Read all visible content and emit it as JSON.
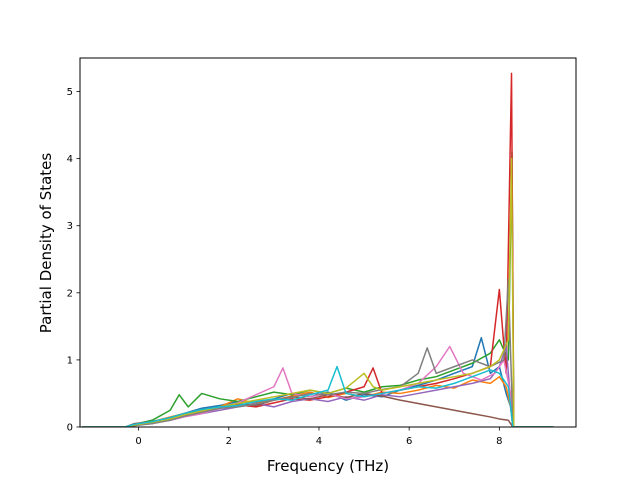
{
  "chart_data": {
    "type": "line",
    "title": "",
    "xlabel": "Frequency (THz)",
    "ylabel": "Partial Density of States",
    "xlim": [
      -1.3,
      9.7
    ],
    "ylim": [
      0,
      5.5
    ],
    "xticks": [
      0,
      2,
      4,
      6,
      8
    ],
    "yticks": [
      0,
      1,
      2,
      3,
      4,
      5
    ],
    "grid": false,
    "legend": "none",
    "series": [
      {
        "color": "#1f77b4",
        "points": [
          [
            -1.25,
            0
          ],
          [
            -0.3,
            0
          ],
          [
            -0.1,
            0.03
          ],
          [
            0.3,
            0.06
          ],
          [
            0.7,
            0.12
          ],
          [
            1.0,
            0.2
          ],
          [
            1.4,
            0.28
          ],
          [
            1.8,
            0.32
          ],
          [
            2.2,
            0.38
          ],
          [
            2.6,
            0.36
          ],
          [
            3.0,
            0.42
          ],
          [
            3.4,
            0.5
          ],
          [
            3.8,
            0.45
          ],
          [
            4.2,
            0.52
          ],
          [
            4.6,
            0.4
          ],
          [
            5.0,
            0.48
          ],
          [
            5.4,
            0.45
          ],
          [
            5.8,
            0.55
          ],
          [
            6.2,
            0.62
          ],
          [
            6.6,
            0.7
          ],
          [
            7.0,
            0.8
          ],
          [
            7.4,
            0.9
          ],
          [
            7.6,
            1.33
          ],
          [
            7.8,
            0.8
          ],
          [
            8.0,
            0.9
          ],
          [
            8.15,
            0.5
          ],
          [
            8.25,
            0.3
          ],
          [
            8.3,
            0
          ],
          [
            9.2,
            0
          ]
        ]
      },
      {
        "color": "#ff7f0e",
        "points": [
          [
            -1.25,
            0
          ],
          [
            -0.3,
            0
          ],
          [
            -0.1,
            0.02
          ],
          [
            0.3,
            0.08
          ],
          [
            0.7,
            0.15
          ],
          [
            1.0,
            0.2
          ],
          [
            1.4,
            0.25
          ],
          [
            1.8,
            0.3
          ],
          [
            2.2,
            0.42
          ],
          [
            2.6,
            0.35
          ],
          [
            3.0,
            0.4
          ],
          [
            3.4,
            0.46
          ],
          [
            3.8,
            0.52
          ],
          [
            4.2,
            0.44
          ],
          [
            4.6,
            0.5
          ],
          [
            5.0,
            0.45
          ],
          [
            5.4,
            0.52
          ],
          [
            5.8,
            0.5
          ],
          [
            6.2,
            0.55
          ],
          [
            6.6,
            0.62
          ],
          [
            7.0,
            0.58
          ],
          [
            7.4,
            0.7
          ],
          [
            7.8,
            0.65
          ],
          [
            8.0,
            0.75
          ],
          [
            8.15,
            0.6
          ],
          [
            8.25,
            0.3
          ],
          [
            8.3,
            0
          ],
          [
            9.2,
            0
          ]
        ]
      },
      {
        "color": "#2ca02c",
        "points": [
          [
            -1.25,
            0
          ],
          [
            -0.3,
            0
          ],
          [
            -0.1,
            0.04
          ],
          [
            0.3,
            0.1
          ],
          [
            0.7,
            0.25
          ],
          [
            0.9,
            0.48
          ],
          [
            1.1,
            0.3
          ],
          [
            1.4,
            0.5
          ],
          [
            1.8,
            0.42
          ],
          [
            2.2,
            0.38
          ],
          [
            2.6,
            0.45
          ],
          [
            3.0,
            0.52
          ],
          [
            3.4,
            0.48
          ],
          [
            3.8,
            0.55
          ],
          [
            4.2,
            0.5
          ],
          [
            4.6,
            0.58
          ],
          [
            5.0,
            0.52
          ],
          [
            5.4,
            0.6
          ],
          [
            5.8,
            0.62
          ],
          [
            6.2,
            0.7
          ],
          [
            6.6,
            0.75
          ],
          [
            7.0,
            0.85
          ],
          [
            7.4,
            0.95
          ],
          [
            7.8,
            1.1
          ],
          [
            8.0,
            1.3
          ],
          [
            8.2,
            1.0
          ],
          [
            8.28,
            4.1
          ],
          [
            8.32,
            0
          ],
          [
            9.2,
            0
          ]
        ]
      },
      {
        "color": "#d62728",
        "points": [
          [
            -1.25,
            0
          ],
          [
            -0.3,
            0
          ],
          [
            -0.1,
            0.03
          ],
          [
            0.3,
            0.05
          ],
          [
            0.7,
            0.12
          ],
          [
            1.0,
            0.18
          ],
          [
            1.4,
            0.22
          ],
          [
            1.8,
            0.28
          ],
          [
            2.2,
            0.33
          ],
          [
            2.6,
            0.3
          ],
          [
            3.0,
            0.36
          ],
          [
            3.4,
            0.42
          ],
          [
            3.8,
            0.4
          ],
          [
            4.2,
            0.45
          ],
          [
            4.6,
            0.52
          ],
          [
            5.0,
            0.6
          ],
          [
            5.2,
            0.88
          ],
          [
            5.4,
            0.5
          ],
          [
            5.8,
            0.55
          ],
          [
            6.2,
            0.6
          ],
          [
            6.6,
            0.65
          ],
          [
            7.0,
            0.72
          ],
          [
            7.4,
            0.8
          ],
          [
            7.8,
            0.9
          ],
          [
            8.0,
            2.05
          ],
          [
            8.15,
            0.8
          ],
          [
            8.27,
            5.27
          ],
          [
            8.32,
            0
          ],
          [
            9.2,
            0
          ]
        ]
      },
      {
        "color": "#9467bd",
        "points": [
          [
            -1.25,
            0
          ],
          [
            -0.3,
            0
          ],
          [
            -0.1,
            0.02
          ],
          [
            0.3,
            0.06
          ],
          [
            0.7,
            0.1
          ],
          [
            1.0,
            0.15
          ],
          [
            1.4,
            0.2
          ],
          [
            1.8,
            0.25
          ],
          [
            2.2,
            0.3
          ],
          [
            2.6,
            0.35
          ],
          [
            3.0,
            0.3
          ],
          [
            3.4,
            0.38
          ],
          [
            3.8,
            0.42
          ],
          [
            4.2,
            0.38
          ],
          [
            4.6,
            0.45
          ],
          [
            5.0,
            0.4
          ],
          [
            5.4,
            0.48
          ],
          [
            5.8,
            0.45
          ],
          [
            6.2,
            0.5
          ],
          [
            6.6,
            0.55
          ],
          [
            7.0,
            0.6
          ],
          [
            7.4,
            0.65
          ],
          [
            7.8,
            0.72
          ],
          [
            8.0,
            0.9
          ],
          [
            8.15,
            1.2
          ],
          [
            8.25,
            0.4
          ],
          [
            8.3,
            0
          ],
          [
            9.2,
            0
          ]
        ]
      },
      {
        "color": "#8c564b",
        "points": [
          [
            -1.25,
            0
          ],
          [
            -0.3,
            0
          ],
          [
            -0.1,
            0.05
          ],
          [
            0.3,
            0.08
          ],
          [
            0.7,
            0.14
          ],
          [
            1.0,
            0.2
          ],
          [
            1.4,
            0.26
          ],
          [
            1.8,
            0.3
          ],
          [
            2.2,
            0.35
          ],
          [
            2.6,
            0.32
          ],
          [
            3.0,
            0.4
          ],
          [
            3.4,
            0.45
          ],
          [
            3.8,
            0.42
          ],
          [
            4.2,
            0.48
          ],
          [
            4.6,
            0.44
          ],
          [
            5.0,
            0.5
          ],
          [
            5.4,
            0.46
          ],
          [
            5.8,
            0.4
          ],
          [
            6.2,
            0.35
          ],
          [
            6.6,
            0.3
          ],
          [
            7.0,
            0.25
          ],
          [
            7.4,
            0.2
          ],
          [
            7.8,
            0.15
          ],
          [
            8.0,
            0.12
          ],
          [
            8.2,
            0.1
          ],
          [
            8.3,
            0
          ],
          [
            9.2,
            0
          ]
        ]
      },
      {
        "color": "#e377c2",
        "points": [
          [
            -1.25,
            0
          ],
          [
            -0.3,
            0
          ],
          [
            -0.1,
            0.03
          ],
          [
            0.3,
            0.06
          ],
          [
            0.7,
            0.1
          ],
          [
            1.0,
            0.15
          ],
          [
            1.4,
            0.2
          ],
          [
            1.8,
            0.28
          ],
          [
            2.2,
            0.36
          ],
          [
            2.6,
            0.48
          ],
          [
            3.0,
            0.6
          ],
          [
            3.2,
            0.88
          ],
          [
            3.4,
            0.5
          ],
          [
            3.8,
            0.45
          ],
          [
            4.2,
            0.5
          ],
          [
            4.6,
            0.42
          ],
          [
            5.0,
            0.45
          ],
          [
            5.4,
            0.5
          ],
          [
            5.8,
            0.55
          ],
          [
            6.2,
            0.65
          ],
          [
            6.6,
            0.9
          ],
          [
            6.9,
            1.2
          ],
          [
            7.2,
            0.8
          ],
          [
            7.6,
            0.7
          ],
          [
            7.9,
            0.8
          ],
          [
            8.1,
            1.0
          ],
          [
            8.25,
            0.5
          ],
          [
            8.3,
            0
          ],
          [
            9.2,
            0
          ]
        ]
      },
      {
        "color": "#7f7f7f",
        "points": [
          [
            -1.25,
            0
          ],
          [
            -0.3,
            0
          ],
          [
            -0.1,
            0.02
          ],
          [
            0.3,
            0.05
          ],
          [
            0.7,
            0.1
          ],
          [
            1.0,
            0.16
          ],
          [
            1.4,
            0.22
          ],
          [
            1.8,
            0.28
          ],
          [
            2.2,
            0.3
          ],
          [
            2.6,
            0.34
          ],
          [
            3.0,
            0.4
          ],
          [
            3.4,
            0.44
          ],
          [
            3.8,
            0.5
          ],
          [
            4.2,
            0.48
          ],
          [
            4.6,
            0.52
          ],
          [
            5.0,
            0.5
          ],
          [
            5.4,
            0.56
          ],
          [
            5.8,
            0.6
          ],
          [
            6.2,
            0.8
          ],
          [
            6.4,
            1.18
          ],
          [
            6.6,
            0.8
          ],
          [
            7.0,
            0.9
          ],
          [
            7.4,
            1.0
          ],
          [
            7.8,
            0.9
          ],
          [
            8.1,
            1.0
          ],
          [
            8.2,
            2.2
          ],
          [
            8.3,
            0
          ],
          [
            9.2,
            0
          ]
        ]
      },
      {
        "color": "#bcbd22",
        "points": [
          [
            -1.25,
            0
          ],
          [
            -0.3,
            0
          ],
          [
            -0.1,
            0.03
          ],
          [
            0.3,
            0.07
          ],
          [
            0.7,
            0.12
          ],
          [
            1.0,
            0.18
          ],
          [
            1.4,
            0.24
          ],
          [
            1.8,
            0.3
          ],
          [
            2.2,
            0.35
          ],
          [
            2.6,
            0.4
          ],
          [
            3.0,
            0.45
          ],
          [
            3.4,
            0.5
          ],
          [
            3.8,
            0.55
          ],
          [
            4.2,
            0.5
          ],
          [
            4.6,
            0.58
          ],
          [
            5.0,
            0.8
          ],
          [
            5.2,
            0.6
          ],
          [
            5.4,
            0.55
          ],
          [
            5.8,
            0.6
          ],
          [
            6.2,
            0.65
          ],
          [
            6.6,
            0.7
          ],
          [
            7.0,
            0.75
          ],
          [
            7.4,
            0.8
          ],
          [
            7.8,
            0.9
          ],
          [
            8.0,
            1.0
          ],
          [
            8.2,
            1.3
          ],
          [
            8.27,
            4.0
          ],
          [
            8.32,
            0
          ],
          [
            9.2,
            0
          ]
        ]
      },
      {
        "color": "#17becf",
        "points": [
          [
            -1.25,
            0
          ],
          [
            -0.3,
            0
          ],
          [
            -0.1,
            0.04
          ],
          [
            0.3,
            0.08
          ],
          [
            0.7,
            0.14
          ],
          [
            1.0,
            0.2
          ],
          [
            1.4,
            0.26
          ],
          [
            1.8,
            0.3
          ],
          [
            2.2,
            0.32
          ],
          [
            2.6,
            0.38
          ],
          [
            3.0,
            0.42
          ],
          [
            3.4,
            0.4
          ],
          [
            3.8,
            0.48
          ],
          [
            4.2,
            0.55
          ],
          [
            4.4,
            0.9
          ],
          [
            4.6,
            0.5
          ],
          [
            5.0,
            0.45
          ],
          [
            5.4,
            0.5
          ],
          [
            5.8,
            0.55
          ],
          [
            6.2,
            0.6
          ],
          [
            6.6,
            0.58
          ],
          [
            7.0,
            0.65
          ],
          [
            7.4,
            0.75
          ],
          [
            7.8,
            0.85
          ],
          [
            8.0,
            0.8
          ],
          [
            8.2,
            0.6
          ],
          [
            8.3,
            0
          ],
          [
            9.2,
            0
          ]
        ]
      }
    ]
  }
}
